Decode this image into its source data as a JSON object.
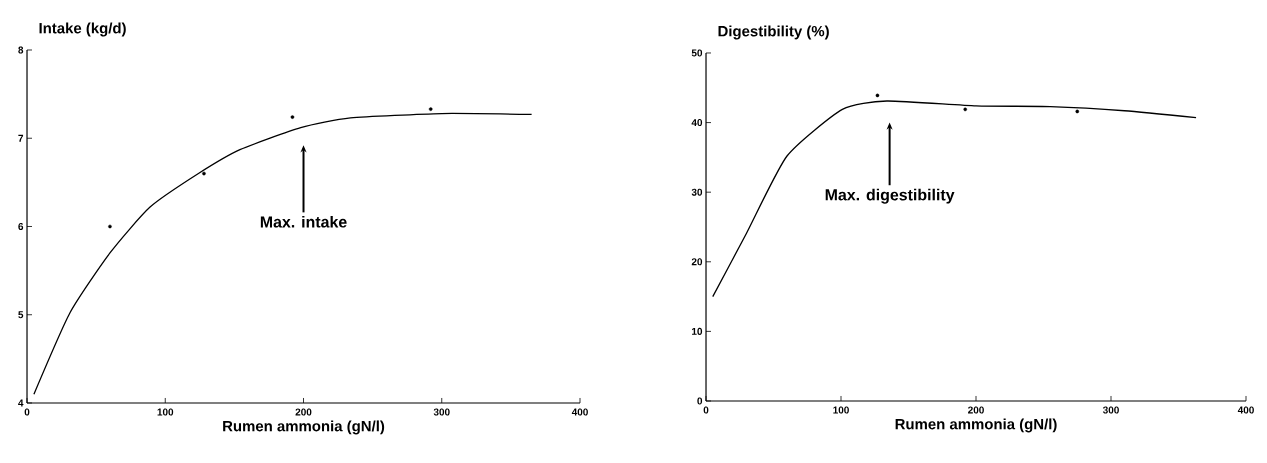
{
  "chart_data": [
    {
      "type": "line",
      "title": "Intake (kg/d)",
      "xlabel": "Rumen ammonia (gN/l)",
      "xlim": [
        0,
        400
      ],
      "ylim": [
        4,
        8
      ],
      "xticks": [
        0,
        100,
        200,
        300,
        400
      ],
      "yticks": [
        4,
        5,
        6,
        7,
        8
      ],
      "series": [
        {
          "type": "scatter",
          "marker": "circle",
          "color": "#000000",
          "x": [
            60,
            128,
            192,
            292
          ],
          "values": [
            6.0,
            6.6,
            7.24,
            7.33
          ]
        },
        {
          "color": "#000000",
          "x": [
            5,
            31,
            60,
            89,
            124,
            154,
            198,
            234,
            300,
            365
          ],
          "values": [
            4.1,
            5.02,
            5.7,
            6.22,
            6.6,
            6.87,
            7.12,
            7.23,
            7.28,
            7.27
          ]
        }
      ],
      "annotations": [
        "Max. intake"
      ]
    },
    {
      "type": "line",
      "title": "Digestibility (%)",
      "xlabel": "Rumen ammonia (gN/l)",
      "xlim": [
        0,
        400
      ],
      "ylim": [
        0,
        50
      ],
      "xticks": [
        0,
        100,
        200,
        300,
        400
      ],
      "yticks": [
        0,
        10,
        20,
        30,
        40,
        50
      ],
      "series": [
        {
          "type": "scatter",
          "marker": "circle",
          "color": "#000000",
          "x": [
            127,
            192,
            275
          ],
          "values": [
            43.9,
            41.9,
            41.6
          ]
        },
        {
          "color": "#000000",
          "x": [
            5,
            30,
            60,
            101,
            134,
            200,
            255,
            310,
            363
          ],
          "values": [
            15.0,
            24.1,
            35.2,
            41.9,
            43.1,
            42.4,
            42.3,
            41.7,
            40.7
          ]
        }
      ],
      "annotations": [
        "Max. digestibility"
      ]
    }
  ]
}
